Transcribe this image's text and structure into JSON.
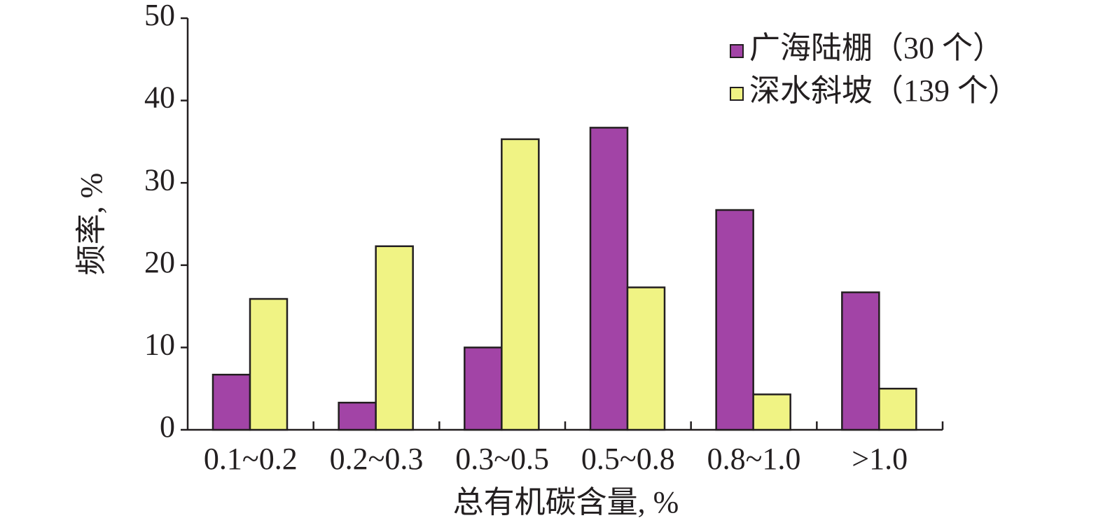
{
  "chart_data": {
    "type": "bar",
    "xlabel": "总有机碳含量, %",
    "ylabel": "频率, %",
    "categories": [
      "0.1~0.2",
      "0.2~0.3",
      "0.3~0.5",
      "0.5~0.8",
      "0.8~1.0",
      ">1.0"
    ],
    "series": [
      {
        "name": "广海陆棚（30 个）",
        "color": "#a244a6",
        "values": [
          6.7,
          3.3,
          10,
          36.7,
          26.7,
          16.7
        ]
      },
      {
        "name": "深水斜坡（139 个）",
        "color": "#f0f384",
        "values": [
          15.9,
          22.3,
          35.3,
          17.3,
          4.3,
          5.0
        ]
      }
    ],
    "ylim": [
      0,
      50
    ],
    "yticks": [
      0,
      10,
      20,
      30,
      40,
      50
    ],
    "legend": "upper right",
    "grid": false
  }
}
